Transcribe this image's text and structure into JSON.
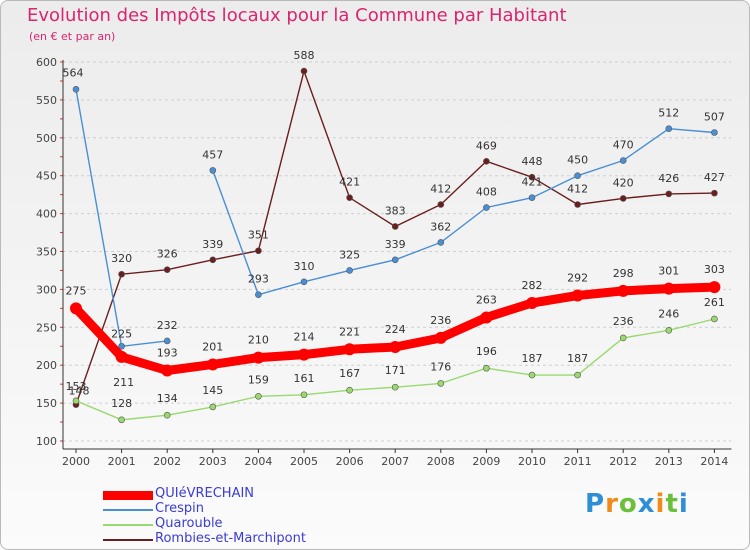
{
  "chart_data": {
    "type": "line",
    "title": "Evolution des Impôts locaux pour la Commune par Habitant",
    "subtitle": "(en € et par an)",
    "x": [
      2000,
      2001,
      2002,
      2003,
      2004,
      2005,
      2006,
      2007,
      2008,
      2009,
      2010,
      2011,
      2012,
      2013,
      2014
    ],
    "ylim": [
      100,
      600
    ],
    "yticks": [
      100,
      150,
      200,
      250,
      300,
      350,
      400,
      450,
      500,
      550,
      600
    ],
    "grid": "horizontal",
    "legend_position": "bottom-left",
    "series": [
      {
        "name": "Rombies-et-Marchipont",
        "color": "#6b1e1e",
        "values": [
          148,
          320,
          326,
          339,
          351,
          588,
          421,
          383,
          412,
          469,
          448,
          412,
          420,
          426,
          427
        ]
      },
      {
        "name": "Crespin",
        "color": "#4a8fd4",
        "values": [
          564,
          225,
          232,
          457,
          293,
          310,
          325,
          339,
          362,
          408,
          421,
          450,
          470,
          512,
          507
        ],
        "gaps_after": [
          2
        ]
      },
      {
        "name": "Quarouble",
        "color": "#99d96e",
        "values": [
          153,
          128,
          134,
          145,
          159,
          161,
          167,
          171,
          176,
          196,
          187,
          187,
          236,
          246,
          261
        ]
      },
      {
        "name": "QUIéVRECHAIN",
        "color": "#ff0000",
        "values": [
          275,
          211,
          193,
          201,
          210,
          214,
          221,
          224,
          236,
          263,
          282,
          292,
          298,
          301,
          303
        ],
        "bold": true
      }
    ],
    "legend_order": [
      "QUIéVRECHAIN",
      "Crespin",
      "Quarouble",
      "Rombies-et-Marchipont"
    ]
  },
  "brand": {
    "letters": [
      "P",
      "r",
      "o",
      "x",
      "i",
      "t",
      "i"
    ],
    "colors": [
      "#2e8fd6",
      "#f08a1a",
      "#6bbf3a",
      "#2e8fd6",
      "#f08a1a",
      "#6bbf3a",
      "#2e8fd6"
    ]
  }
}
